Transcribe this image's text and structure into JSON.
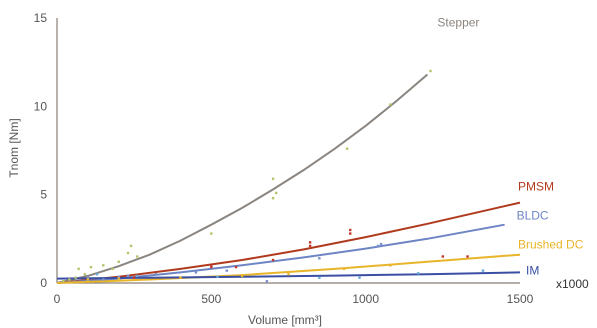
{
  "chart_data": {
    "type": "scatter",
    "title": "",
    "xlabel": "Volume [mm³]",
    "ylabel": "Tnom [Nm]",
    "x_unit_note": "x1000",
    "xlim": [
      0,
      1500
    ],
    "ylim": [
      0,
      15
    ],
    "x_ticks": [
      0,
      500,
      1000,
      1500
    ],
    "y_ticks": [
      0,
      5,
      10,
      15
    ],
    "grid": false,
    "legend": "inline labels at right end of each trend line",
    "series": [
      {
        "name": "Stepper",
        "color": "#8b8580",
        "point_color": "#b5c46a",
        "trend_x_range": [
          0,
          1200
        ],
        "trend": [
          [
            0,
            0
          ],
          [
            100,
            0.4
          ],
          [
            200,
            0.95
          ],
          [
            300,
            1.6
          ],
          [
            400,
            2.4
          ],
          [
            500,
            3.3
          ],
          [
            600,
            4.25
          ],
          [
            700,
            5.3
          ],
          [
            800,
            6.4
          ],
          [
            900,
            7.6
          ],
          [
            1000,
            8.9
          ],
          [
            1100,
            10.3
          ],
          [
            1200,
            11.8
          ]
        ],
        "points": [
          [
            20,
            0.1
          ],
          [
            40,
            0.2
          ],
          [
            60,
            0.3
          ],
          [
            70,
            0.8
          ],
          [
            90,
            0.5
          ],
          [
            110,
            0.9
          ],
          [
            150,
            1.0
          ],
          [
            180,
            0.8
          ],
          [
            200,
            1.2
          ],
          [
            230,
            1.7
          ],
          [
            240,
            2.1
          ],
          [
            260,
            1.5
          ],
          [
            500,
            2.8
          ],
          [
            700,
            5.9
          ],
          [
            700,
            4.8
          ],
          [
            710,
            5.1
          ],
          [
            940,
            7.6
          ],
          [
            1080,
            10.1
          ],
          [
            1210,
            12.0
          ]
        ]
      },
      {
        "name": "PMSM",
        "color": "#b03a1e",
        "point_color": "#c0392b",
        "trend_x_range": [
          0,
          1500
        ],
        "trend": [
          [
            0,
            0
          ],
          [
            200,
            0.35
          ],
          [
            400,
            0.8
          ],
          [
            600,
            1.3
          ],
          [
            800,
            1.9
          ],
          [
            1000,
            2.6
          ],
          [
            1200,
            3.35
          ],
          [
            1400,
            4.15
          ],
          [
            1500,
            4.55
          ]
        ],
        "points": [
          [
            250,
            0.3
          ],
          [
            500,
            0.9
          ],
          [
            500,
            1.0
          ],
          [
            580,
            0.9
          ],
          [
            700,
            1.3
          ],
          [
            820,
            2.1
          ],
          [
            820,
            2.3
          ],
          [
            950,
            2.8
          ],
          [
            950,
            3.0
          ],
          [
            1250,
            1.5
          ],
          [
            1330,
            1.5
          ]
        ]
      },
      {
        "name": "BLDC",
        "color": "#6d85c4",
        "point_color": "#7a90cc",
        "trend_x_range": [
          0,
          1450
        ],
        "trend": [
          [
            0,
            0
          ],
          [
            200,
            0.25
          ],
          [
            400,
            0.6
          ],
          [
            600,
            1.0
          ],
          [
            800,
            1.45
          ],
          [
            1000,
            1.95
          ],
          [
            1200,
            2.5
          ],
          [
            1450,
            3.3
          ]
        ],
        "points": [
          [
            100,
            0.3
          ],
          [
            150,
            0.2
          ],
          [
            200,
            0.35
          ],
          [
            230,
            0.4
          ],
          [
            320,
            0.5
          ],
          [
            450,
            0.6
          ],
          [
            550,
            0.7
          ],
          [
            680,
            0.1
          ],
          [
            850,
            1.4
          ],
          [
            1040,
            2.1
          ],
          [
            1050,
            2.2
          ]
        ]
      },
      {
        "name": "Brushed DC",
        "color": "#e8b42a",
        "point_color": "#e8b42a",
        "trend_x_range": [
          0,
          1500
        ],
        "trend": [
          [
            0,
            0
          ],
          [
            300,
            0.2
          ],
          [
            600,
            0.45
          ],
          [
            900,
            0.8
          ],
          [
            1200,
            1.2
          ],
          [
            1500,
            1.6
          ]
        ],
        "points": [
          [
            100,
            0.2
          ],
          [
            200,
            0.25
          ],
          [
            400,
            0.3
          ],
          [
            600,
            0.4
          ],
          [
            750,
            0.5
          ],
          [
            930,
            0.8
          ],
          [
            1080,
            1.0
          ]
        ]
      },
      {
        "name": "IM",
        "color": "#3a4ea3",
        "point_color": "#6aa6d6",
        "trend_x_range": [
          0,
          1500
        ],
        "trend": [
          [
            0,
            0.25
          ],
          [
            300,
            0.3
          ],
          [
            600,
            0.35
          ],
          [
            900,
            0.42
          ],
          [
            1200,
            0.5
          ],
          [
            1500,
            0.6
          ]
        ],
        "points": [
          [
            130,
            0.5
          ],
          [
            260,
            0.4
          ],
          [
            520,
            0.35
          ],
          [
            850,
            0.3
          ],
          [
            980,
            0.3
          ],
          [
            1170,
            0.55
          ],
          [
            1380,
            0.7
          ]
        ]
      }
    ]
  }
}
